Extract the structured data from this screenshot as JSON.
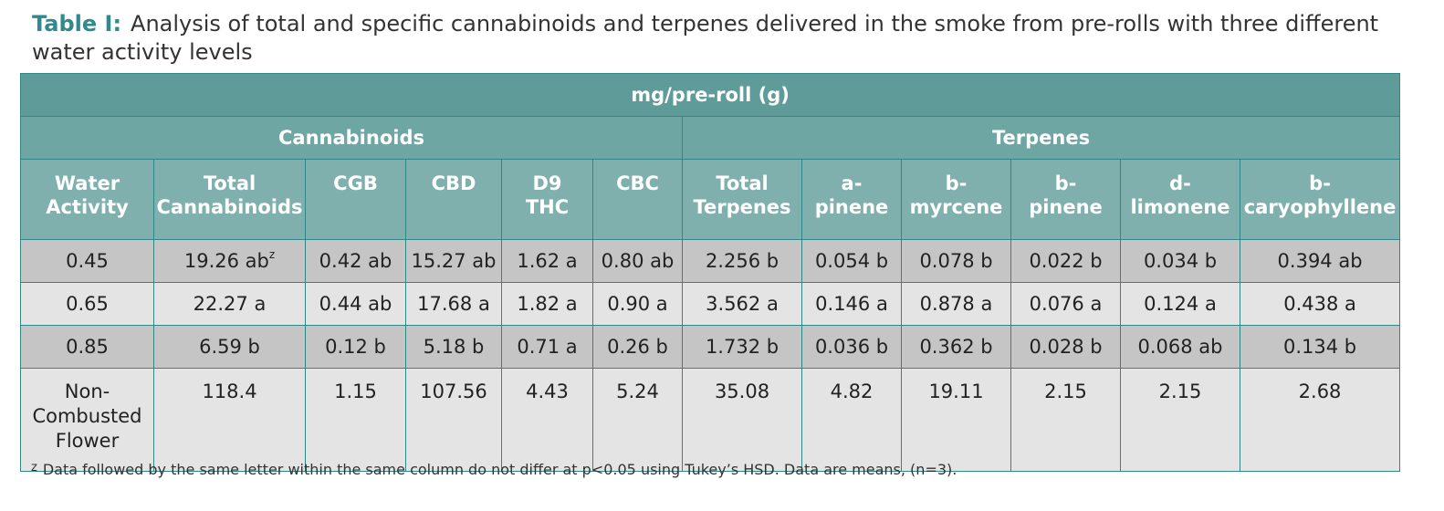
{
  "caption": {
    "label": "Table I:",
    "text": "Analysis of total and specific cannabinoids and terpenes delivered in the smoke from pre-rolls with three different water activity levels"
  },
  "table": {
    "unit_header": "mg/pre-roll (g)",
    "group_headers": {
      "cannabinoids": "Cannabinoids",
      "terpenes": "Terpenes"
    },
    "columns": [
      "Water Activity",
      "Total Cannabinoids",
      "CGB",
      "CBD",
      "D9 THC",
      "CBC",
      "Total Terpenes",
      "a-pinene",
      "b-myrcene",
      "b-pinene",
      "d-limonene",
      "b-caryophyllene"
    ],
    "rows": [
      [
        "0.45",
        "19.26 ab",
        "0.42 ab",
        "15.27 ab",
        "1.62 a",
        "0.80 ab",
        "2.256 b",
        "0.054 b",
        "0.078 b",
        "0.022 b",
        "0.034 b",
        "0.394 ab"
      ],
      [
        "0.65",
        "22.27 a",
        "0.44 ab",
        "17.68 a",
        "1.82 a",
        "0.90 a",
        "3.562 a",
        "0.146 a",
        "0.878 a",
        "0.076 a",
        "0.124 a",
        "0.438 a"
      ],
      [
        "0.85",
        "6.59 b",
        "0.12 b",
        "5.18 b",
        "0.71 a",
        "0.26 b",
        "1.732 b",
        "0.036 b",
        "0.362 b",
        "0.028 b",
        "0.068 ab",
        "0.134 b"
      ],
      [
        "Non-Combusted Flower",
        "118.4",
        "1.15",
        "107.56",
        "4.43",
        "5.24",
        "35.08",
        "4.82",
        "19.11",
        "2.15",
        "2.15",
        "2.68"
      ]
    ],
    "superscript": "z"
  },
  "footnote": {
    "marker": "z",
    "text": "Data followed by the same letter within the same column do not differ at p<0.05 using Tukey’s HSD. Data are means, (n=3)."
  },
  "colors": {
    "caption_label": "#2e8a8c",
    "header_title_bg": "#5e9b99",
    "header_group_bg": "#6ea6a4",
    "header_cols_bg": "#7fb0ae",
    "row_dark_bg": "#c5c5c5",
    "row_light_bg": "#e4e4e4",
    "border": "#2f8786"
  }
}
